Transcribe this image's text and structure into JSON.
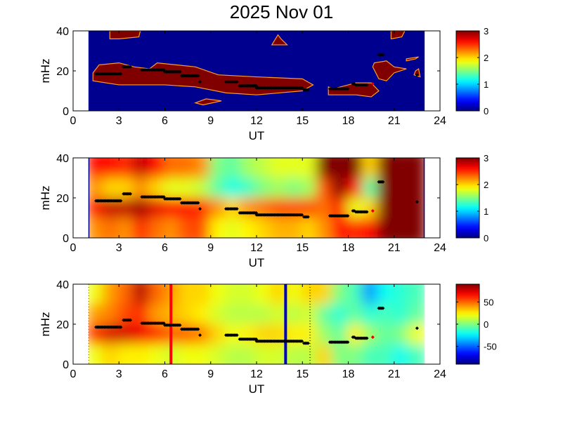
{
  "chart_data": {
    "type": "heatmap",
    "title": "2025 Nov 01",
    "xlim": [
      0,
      24
    ],
    "xticks": [
      "0",
      "3",
      "6",
      "9",
      "12",
      "15",
      "18",
      "21",
      "24"
    ],
    "data_xrange": [
      1,
      23
    ],
    "track": {
      "segments": [
        [
          1.5,
          3.2,
          18.5
        ],
        [
          3.3,
          3.8,
          22
        ],
        [
          4.5,
          6.0,
          20.5
        ],
        [
          6.0,
          7.0,
          19.5
        ],
        [
          7.1,
          8.2,
          17.5
        ],
        [
          8.3,
          8.3,
          14.5
        ],
        [
          10.0,
          10.8,
          14.5
        ],
        [
          10.9,
          12.0,
          12.5
        ],
        [
          12.0,
          15.0,
          11.5
        ],
        [
          15.1,
          15.4,
          10.5
        ],
        [
          16.8,
          18.0,
          11
        ],
        [
          18.3,
          18.4,
          13.5
        ],
        [
          18.5,
          19.3,
          13
        ],
        [
          20.0,
          20.3,
          28
        ],
        [
          22.5,
          22.5,
          18
        ]
      ],
      "red_points": [
        [
          19.6,
          13.5
        ]
      ]
    },
    "panels": [
      {
        "name": "threshold",
        "ylabel": "mHz",
        "xlabel": "UT",
        "ylim": [
          0,
          40
        ],
        "yticks": [
          "0",
          "20",
          "40"
        ],
        "colorbar": {
          "range": [
            0,
            3
          ],
          "ticks": [
            "0",
            "1",
            "2",
            "3"
          ]
        },
        "background_value": 0,
        "blobs": [
          [
            [
              1.3,
              19
            ],
            [
              1.7,
              23
            ],
            [
              3,
              24
            ],
            [
              4,
              22
            ],
            [
              5,
              21
            ],
            [
              5.5,
              24
            ],
            [
              8,
              22
            ],
            [
              9.5,
              18
            ],
            [
              12,
              17
            ],
            [
              15,
              16
            ],
            [
              15.7,
              13
            ],
            [
              15,
              10
            ],
            [
              12,
              8
            ],
            [
              10,
              9
            ],
            [
              8,
              12
            ],
            [
              6,
              13
            ],
            [
              3,
              13
            ],
            [
              1.3,
              15
            ]
          ],
          [
            [
              16.7,
              12
            ],
            [
              17,
              11
            ],
            [
              18.5,
              14
            ],
            [
              19.5,
              14
            ],
            [
              20,
              10
            ],
            [
              19.5,
              7
            ],
            [
              18.5,
              8
            ],
            [
              16.7,
              8
            ]
          ],
          [
            [
              2.4,
              40
            ],
            [
              4.4,
              40
            ],
            [
              4.3,
              37
            ],
            [
              3,
              36
            ],
            [
              2.4,
              36
            ]
          ],
          [
            [
              13.4,
              38
            ],
            [
              13.6,
              36
            ],
            [
              14,
              33
            ],
            [
              13,
              33
            ]
          ],
          [
            [
              20.8,
              40
            ],
            [
              21.7,
              40
            ],
            [
              21.5,
              37
            ],
            [
              20.8,
              36
            ]
          ],
          [
            [
              19.7,
              24
            ],
            [
              20.5,
              25
            ],
            [
              21,
              22
            ],
            [
              21.8,
              21
            ],
            [
              21,
              19
            ],
            [
              20.5,
              15
            ],
            [
              20,
              16
            ],
            [
              19.6,
              22
            ]
          ],
          [
            [
              21.8,
              26
            ],
            [
              22.6,
              27
            ],
            [
              22.4,
              26
            ],
            [
              21.8,
              25
            ]
          ],
          [
            [
              22.4,
              20
            ],
            [
              22.6,
              21
            ],
            [
              22.7,
              17
            ],
            [
              22.3,
              18
            ]
          ],
          [
            [
              8,
              4
            ],
            [
              8.7,
              6
            ],
            [
              9.7,
              5
            ],
            [
              8.5,
              3
            ]
          ]
        ]
      },
      {
        "name": "power",
        "ylabel": "mHz",
        "xlabel": "UT",
        "ylim": [
          0,
          40
        ],
        "yticks": [
          "0",
          "20",
          "40"
        ],
        "colorbar": {
          "range": [
            0,
            3
          ],
          "ticks": [
            "0",
            "1",
            "2",
            "3"
          ]
        },
        "grid": [
          [
            2.2,
            2.6,
            2.2,
            2.6
          ],
          [
            2.3,
            2.8,
            2.0,
            2.6
          ],
          [
            2.2,
            2.8,
            2.0,
            2.5
          ],
          [
            2.5,
            2.9,
            2.2,
            2.8
          ],
          [
            2.3,
            2.7,
            2.0,
            2.6
          ],
          [
            2.2,
            2.6,
            1.8,
            2.3
          ],
          [
            2.4,
            2.6,
            1.8,
            2.3
          ],
          [
            2.4,
            2.5,
            1.7,
            2.2
          ],
          [
            1.9,
            2.2,
            1.4,
            1.5
          ],
          [
            1.8,
            2.0,
            1.2,
            1.4
          ],
          [
            1.9,
            2.2,
            1.3,
            1.6
          ],
          [
            2.0,
            2.3,
            1.5,
            1.7
          ],
          [
            2.1,
            2.4,
            1.6,
            1.8
          ],
          [
            2.1,
            2.4,
            1.5,
            1.8
          ],
          [
            2.0,
            2.4,
            1.6,
            1.8
          ],
          [
            2.2,
            2.3,
            2.4,
            3.0
          ],
          [
            2.6,
            2.6,
            3.0,
            3.0
          ],
          [
            2.5,
            1.8,
            2.6,
            3.0
          ],
          [
            2.6,
            2.0,
            1.4,
            2.0
          ],
          [
            3,
            3,
            3,
            3
          ],
          [
            3,
            3,
            3,
            3
          ],
          [
            3,
            3,
            3,
            3
          ]
        ]
      },
      {
        "name": "phase",
        "ylabel": "mHz",
        "xlabel": "UT",
        "ylim": [
          0,
          40
        ],
        "yticks": [
          "0",
          "20",
          "40"
        ],
        "colorbar": {
          "range": [
            -90,
            90
          ],
          "ticks": [
            "-50",
            "0",
            "50"
          ]
        },
        "grid": [
          [
            20,
            60,
            40,
            20
          ],
          [
            30,
            75,
            45,
            40
          ],
          [
            25,
            75,
            55,
            50
          ],
          [
            25,
            70,
            60,
            80
          ],
          [
            20,
            60,
            40,
            50
          ],
          [
            15,
            50,
            35,
            40
          ],
          [
            20,
            50,
            30,
            30
          ],
          [
            20,
            45,
            25,
            30
          ],
          [
            15,
            30,
            15,
            20
          ],
          [
            10,
            20,
            10,
            15
          ],
          [
            10,
            25,
            10,
            15
          ],
          [
            15,
            30,
            10,
            20
          ],
          [
            15,
            30,
            15,
            30
          ],
          [
            10,
            25,
            10,
            20
          ],
          [
            10,
            25,
            15,
            30
          ],
          [
            30,
            5,
            -5,
            30
          ],
          [
            0,
            -5,
            -15,
            0
          ],
          [
            0,
            25,
            -5,
            -10
          ],
          [
            -10,
            5,
            -15,
            -40
          ],
          [
            -10,
            -5,
            -10,
            -20
          ],
          [
            -20,
            0,
            -15,
            -15
          ],
          [
            -10,
            20,
            -5,
            -10
          ]
        ],
        "vlines": [
          {
            "ut": 6.4,
            "color": "#ff0000"
          },
          {
            "ut": 13.9,
            "color": "#0000cc"
          }
        ],
        "dotted_lines": [
          1.0,
          15.5
        ]
      }
    ]
  }
}
